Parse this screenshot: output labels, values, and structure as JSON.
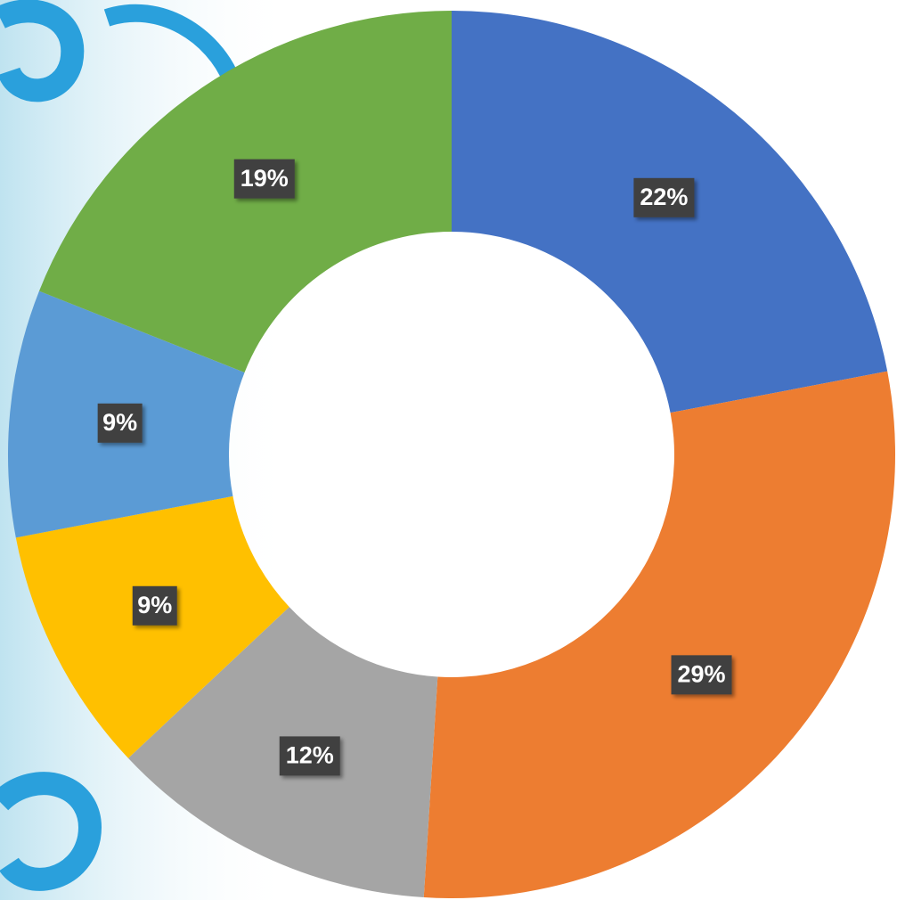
{
  "chart_data": {
    "type": "donut",
    "values": [
      22,
      29,
      12,
      9,
      9,
      19
    ],
    "value_labels": [
      "22%",
      "29%",
      "12%",
      "9%",
      "9%",
      "19%"
    ],
    "colors": [
      "#4472c4",
      "#ed7d31",
      "#a5a5a5",
      "#ffc000",
      "#5b9bd5",
      "#70ad47"
    ]
  }
}
